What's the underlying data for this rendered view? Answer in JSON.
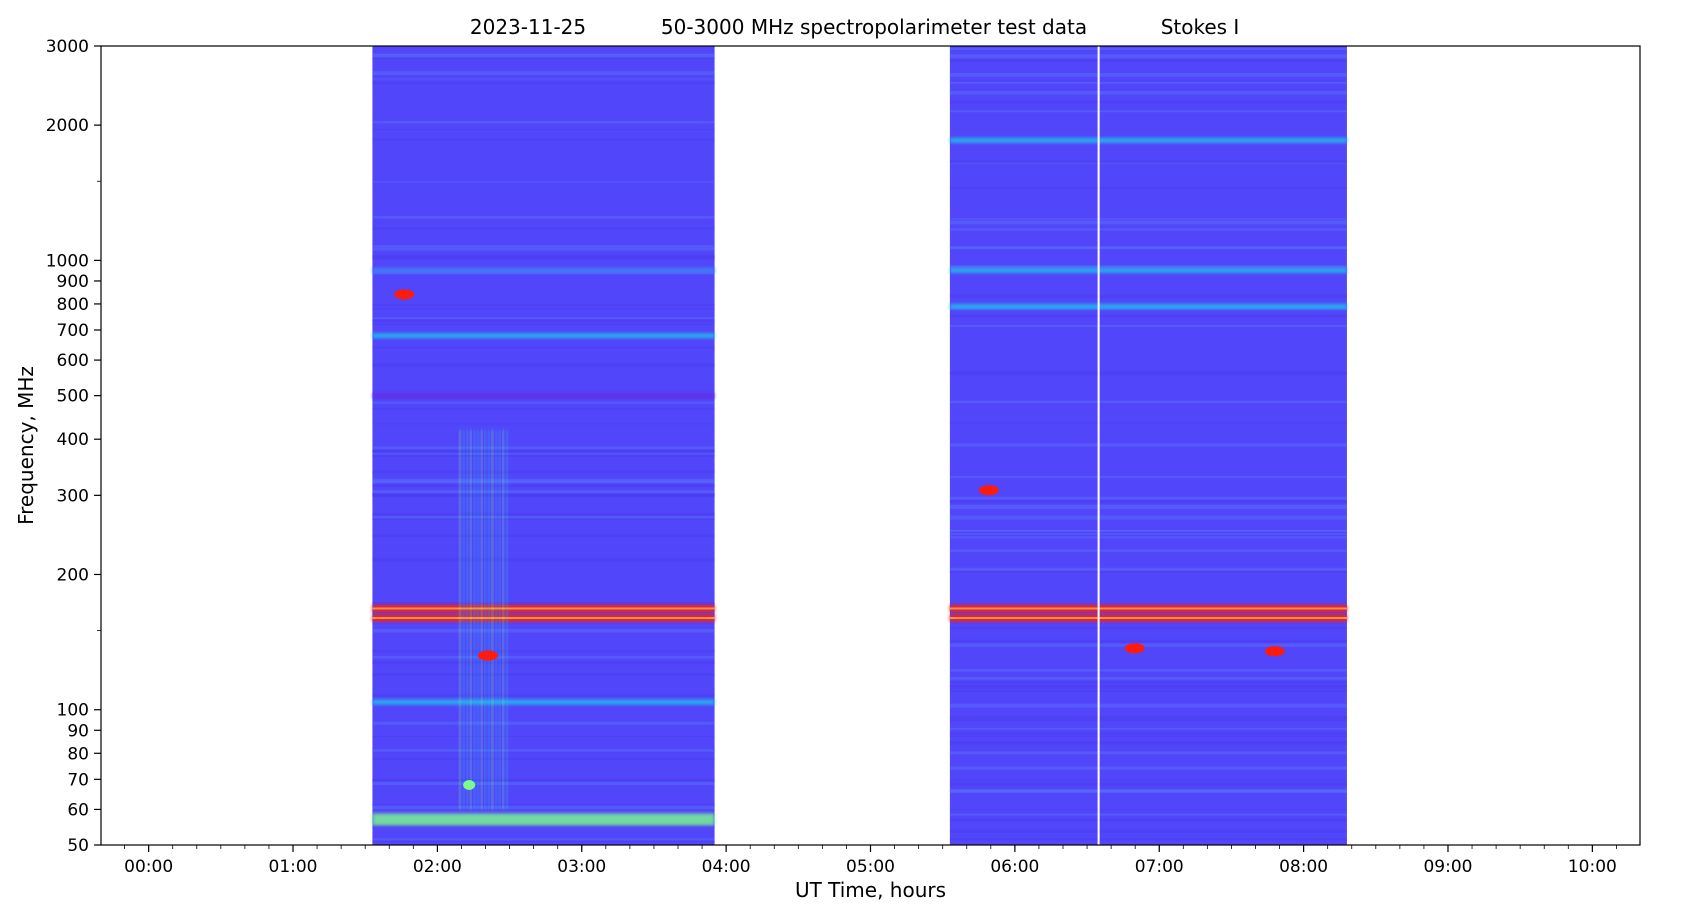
{
  "chart_data": {
    "type": "heatmap",
    "title": {
      "date": "2023-11-25",
      "description": "50-3000 MHz spectropolarimeter test data",
      "stokes": "Stokes I"
    },
    "xlabel": "UT Time, hours",
    "ylabel": "Frequency, MHz",
    "x_scale": "linear",
    "y_scale": "log",
    "xlim_hours": [
      -0.33,
      10.33
    ],
    "ylim_mhz": [
      50,
      3000
    ],
    "x_ticks": [
      {
        "value": 0,
        "label": "00:00"
      },
      {
        "value": 1,
        "label": "01:00"
      },
      {
        "value": 2,
        "label": "02:00"
      },
      {
        "value": 3,
        "label": "03:00"
      },
      {
        "value": 4,
        "label": "04:00"
      },
      {
        "value": 5,
        "label": "05:00"
      },
      {
        "value": 6,
        "label": "06:00"
      },
      {
        "value": 7,
        "label": "07:00"
      },
      {
        "value": 8,
        "label": "08:00"
      },
      {
        "value": 9,
        "label": "09:00"
      },
      {
        "value": 10,
        "label": "10:00"
      }
    ],
    "y_ticks": [
      {
        "value": 3000,
        "label": "3000"
      },
      {
        "value": 2000,
        "label": "2000"
      },
      {
        "value": 1000,
        "label": "1000"
      },
      {
        "value": 900,
        "label": "900"
      },
      {
        "value": 800,
        "label": "800"
      },
      {
        "value": 700,
        "label": "700"
      },
      {
        "value": 600,
        "label": "600"
      },
      {
        "value": 500,
        "label": "500"
      },
      {
        "value": 400,
        "label": "400"
      },
      {
        "value": 300,
        "label": "300"
      },
      {
        "value": 200,
        "label": "200"
      },
      {
        "value": 100,
        "label": "100"
      },
      {
        "value": 90,
        "label": "90"
      },
      {
        "value": 80,
        "label": "80"
      },
      {
        "value": 70,
        "label": "70"
      },
      {
        "value": 60,
        "label": "60"
      },
      {
        "value": 50,
        "label": "50"
      }
    ],
    "y_minor_ticks": [
      1500,
      150
    ],
    "colormap": "rainbow",
    "colors": {
      "background": "#5246fb",
      "cyan": "#1ec8e8",
      "green": "#7cfc8a",
      "red": "#ff1a0a",
      "purple": "#6a2ae0",
      "gap": "#ffffff"
    },
    "observation_segments": [
      {
        "start_hours": 1.55,
        "end_hours": 3.92
      },
      {
        "start_hours": 5.55,
        "end_hours": 8.3
      }
    ],
    "data_gaps": [
      {
        "time_hours": 6.58
      }
    ],
    "features": [
      {
        "kind": "band",
        "segment": 0,
        "freq_mhz": 57,
        "level": "high"
      },
      {
        "kind": "band",
        "segment": 0,
        "freq_mhz": 104,
        "level": "medium"
      },
      {
        "kind": "band",
        "segment": 0,
        "freq_mhz": 160,
        "level": "saturated"
      },
      {
        "kind": "band",
        "segment": 0,
        "freq_mhz": 168,
        "level": "saturated"
      },
      {
        "kind": "band",
        "segment": 0,
        "freq_mhz": 950,
        "level": "low"
      },
      {
        "kind": "band",
        "segment": 0,
        "freq_mhz": 500,
        "level": "very-low"
      },
      {
        "kind": "band",
        "segment": 0,
        "freq_mhz": 680,
        "level": "medium"
      },
      {
        "kind": "band",
        "segment": 1,
        "freq_mhz": 160,
        "level": "saturated"
      },
      {
        "kind": "band",
        "segment": 1,
        "freq_mhz": 168,
        "level": "saturated"
      },
      {
        "kind": "band",
        "segment": 1,
        "freq_mhz": 790,
        "level": "medium"
      },
      {
        "kind": "band",
        "segment": 1,
        "freq_mhz": 950,
        "level": "medium"
      },
      {
        "kind": "band",
        "segment": 1,
        "freq_mhz": 1850,
        "level": "medium"
      },
      {
        "kind": "burst",
        "t_start": 2.15,
        "t_end": 2.5,
        "f_low": 60,
        "f_high": 420,
        "level": "medium"
      },
      {
        "kind": "spot",
        "t_center": 2.35,
        "freq_mhz": 132,
        "level": "saturated"
      },
      {
        "kind": "spot",
        "t_center": 2.22,
        "freq_mhz": 68,
        "level": "high"
      },
      {
        "kind": "spot",
        "t_center": 1.77,
        "freq_mhz": 840,
        "level": "saturated"
      },
      {
        "kind": "spot",
        "t_center": 5.82,
        "freq_mhz": 308,
        "level": "saturated"
      },
      {
        "kind": "spot",
        "t_center": 7.8,
        "freq_mhz": 135,
        "level": "saturated"
      },
      {
        "kind": "spot",
        "t_center": 6.83,
        "freq_mhz": 137,
        "level": "saturated"
      }
    ]
  }
}
